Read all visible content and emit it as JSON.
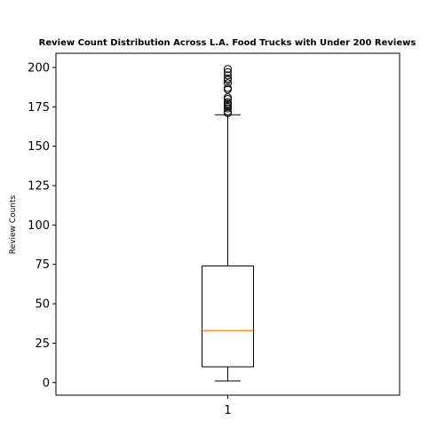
{
  "chart_data": {
    "type": "box",
    "title": "Review Count Distribution Across L.A. Food Trucks with Under 200 Reviews",
    "xlabel": "",
    "ylabel": "Review Counts",
    "categories": [
      "1"
    ],
    "ylim": [
      -8,
      209
    ],
    "y_ticks": [
      0,
      25,
      50,
      75,
      100,
      125,
      150,
      175,
      200
    ],
    "grid": false,
    "series": [
      {
        "whisker_low": 1,
        "q1": 10,
        "median": 33,
        "q3": 74,
        "whisker_high": 170,
        "outliers": [
          171,
          172,
          174,
          175,
          176,
          177,
          178,
          180,
          181,
          186,
          187,
          190,
          192,
          193,
          195,
          197,
          199
        ]
      }
    ],
    "colors": {
      "box": "#000000",
      "median": "#ff7f0e"
    }
  }
}
